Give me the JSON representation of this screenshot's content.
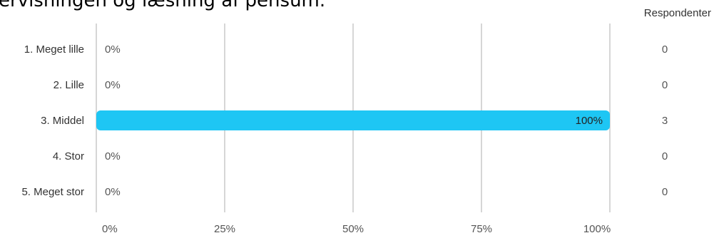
{
  "title": "ervisningen og læsning af pensum.",
  "respondents_header": "Respondenter",
  "chart_data": {
    "type": "bar",
    "orientation": "horizontal",
    "categories": [
      "1. Meget lille",
      "2. Lille",
      "3. Middel",
      "4. Stor",
      "5. Meget stor"
    ],
    "values": [
      0,
      0,
      100,
      0,
      0
    ],
    "value_labels": [
      "0%",
      "0%",
      "100%",
      "0%",
      "0%"
    ],
    "respondents": [
      "0",
      "0",
      "3",
      "0",
      "0"
    ],
    "x_ticks": [
      0,
      25,
      50,
      75,
      100
    ],
    "x_tick_labels": [
      "0%",
      "25%",
      "50%",
      "75%",
      "100%"
    ],
    "xlim": [
      0,
      100
    ],
    "grid": true,
    "bar_color": "#1EC6F4"
  }
}
